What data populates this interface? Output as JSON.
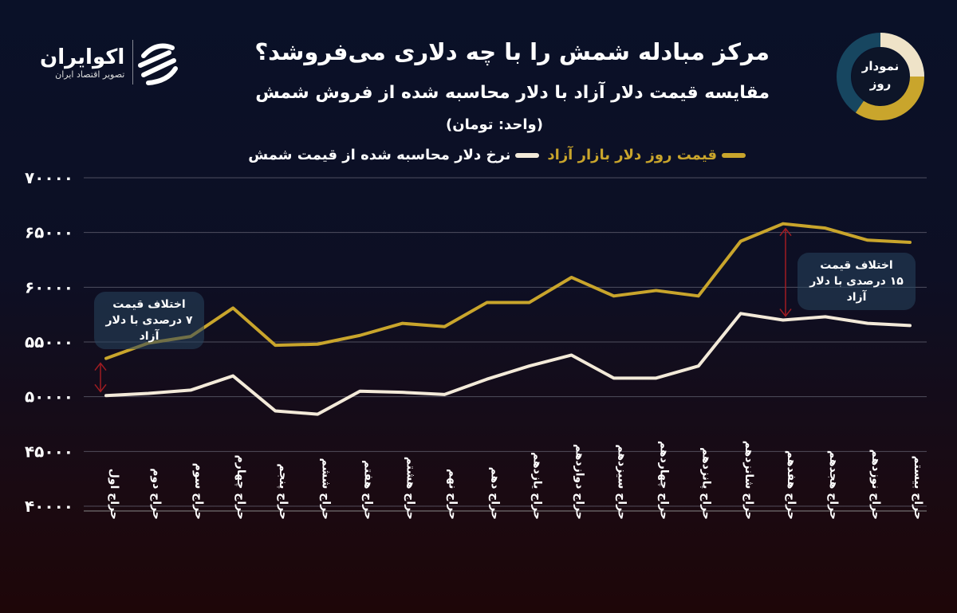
{
  "header": {
    "title": "مرکز مبادله شمش را با چه دلاری می‌فروشد؟",
    "subtitle": "مقایسه قیمت دلار آزاد با دلار محاسبه شده از فروش شمش",
    "unit": "(واحد: تومان)",
    "logo_name": "اکوایران",
    "logo_tagline": "تصویر اقتصاد ایران",
    "badge": [
      "نمودار",
      "روز"
    ]
  },
  "colors": {
    "gold": "#c9a52c",
    "white": "#f3ead9",
    "arrow": "#a01c22",
    "grid": "#6a6a7a"
  },
  "chart_data": {
    "type": "line",
    "xlabel": "",
    "ylabel": "",
    "ylim": [
      40000,
      70000
    ],
    "yticks": [
      40000,
      45000,
      50000,
      55000,
      60000,
      65000,
      70000
    ],
    "ytick_labels": [
      "۴۰۰۰۰",
      "۴۵۰۰۰",
      "۵۰۰۰۰",
      "۵۵۰۰۰",
      "۶۰۰۰۰",
      "۶۵۰۰۰",
      "۷۰۰۰۰"
    ],
    "grid": true,
    "legend_position": "top",
    "categories": [
      "حراج اول",
      "حراج دوم",
      "حراج سوم",
      "حراج چهارم",
      "حراج پنجم",
      "حراج ششم",
      "حراج هفتم",
      "حراج هشتم",
      "حراج نهم",
      "حراج دهم",
      "حراج یازدهم",
      "حراج دوازدهم",
      "حراج سیزدهم",
      "حراج چهاردهم",
      "حراج پانزدهم",
      "حراج شانزدهم",
      "حراج هفدهم",
      "حراج هجدهم",
      "حراج نوزدهم",
      "حراج بیستم"
    ],
    "series": [
      {
        "name": "قیمت روز دلار بازار آزاد",
        "color": "#c9a52c",
        "values": [
          53500,
          54900,
          55500,
          58100,
          54700,
          54800,
          55600,
          56700,
          56400,
          58600,
          58600,
          60900,
          59200,
          59700,
          59200,
          64200,
          65800,
          65400,
          64300,
          64100
        ]
      },
      {
        "name": "نرخ دلار محاسبه شده از قیمت شمش",
        "color": "#f3ead9",
        "values": [
          50100,
          50300,
          50600,
          51900,
          48700,
          48400,
          50500,
          50400,
          50200,
          51600,
          52800,
          53800,
          51700,
          51700,
          52800,
          57600,
          57000,
          57300,
          56700,
          56500
        ]
      }
    ],
    "annotations": [
      {
        "lines": [
          "اختلاف قیمت",
          "۷ درصدی با دلار آزاد"
        ],
        "category": "حراج اول"
      },
      {
        "lines": [
          "اختلاف قیمت",
          "۱۵ درصدی با دلار آزاد"
        ],
        "category": "حراج هفدهم"
      }
    ]
  }
}
